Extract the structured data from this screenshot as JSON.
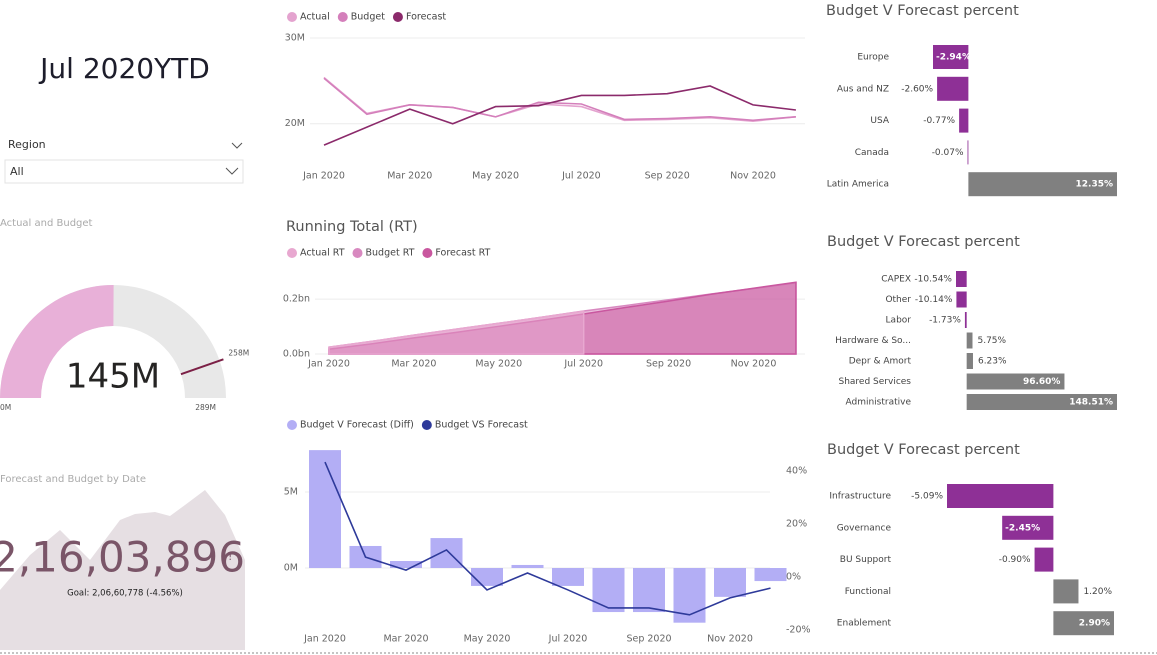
{
  "header": {
    "title": "Jul 2020YTD"
  },
  "slicer": {
    "label": "Region",
    "value": "All"
  },
  "kpi": {
    "title": "Forecast and Budget by Date",
    "value": "2,16,03,896",
    "icon": "!",
    "goal": "Goal: 2,06,60,778 (-4.56%)"
  },
  "chart_data": [
    {
      "type": "line",
      "categories": [
        "Jan 2020",
        null,
        "Mar 2020",
        null,
        "May 2020",
        null,
        "Jul 2020",
        null,
        "Sep 2020",
        null,
        "Nov 2020",
        null
      ],
      "series": [
        {
          "name": "Actual",
          "color": "#e4a3cf",
          "values": [
            25.4,
            21.2,
            22.2,
            21.9,
            20.8,
            22.3,
            22.0,
            20.4,
            20.5,
            20.7,
            20.3,
            20.8
          ]
        },
        {
          "name": "Budget",
          "color": "#d47fbb",
          "values": [
            25.3,
            21.1,
            22.2,
            21.9,
            20.8,
            22.5,
            22.3,
            20.5,
            20.6,
            20.8,
            20.4,
            20.8
          ]
        },
        {
          "name": "Forecast",
          "color": "#8b2a6b",
          "values": [
            17.5,
            19.6,
            21.7,
            20.0,
            22.0,
            22.1,
            23.3,
            23.3,
            23.5,
            24.4,
            22.2,
            21.6
          ]
        }
      ],
      "ylim": [
        16,
        30
      ],
      "yticks": [
        {
          "value": 20,
          "label": "20M"
        },
        {
          "value": 30,
          "label": "30M"
        }
      ],
      "grid": true
    },
    {
      "type": "area",
      "title": "Running Total (RT)",
      "categories": [
        "Jan 2020",
        null,
        "Mar 2020",
        null,
        "May 2020",
        null,
        "Jul 2020",
        null,
        "Sep 2020",
        null,
        "Nov 2020",
        null
      ],
      "series": [
        {
          "name": "Actual RT",
          "color": "#e8a8d0",
          "values": [
            0.025,
            0.046,
            0.069,
            0.091,
            0.112,
            0.134,
            0.156,
            null,
            null,
            null,
            null,
            null
          ]
        },
        {
          "name": "Budget RT",
          "color": "#d889c0",
          "values": [
            0.025,
            0.046,
            0.069,
            0.091,
            0.112,
            0.134,
            0.157,
            0.177,
            0.198,
            0.219,
            0.239,
            0.26
          ]
        },
        {
          "name": "Forecast RT",
          "color": "#c9579f",
          "values": [
            0.0175,
            0.037,
            0.059,
            0.079,
            0.101,
            0.123,
            0.146,
            0.17,
            0.193,
            0.218,
            0.24,
            0.262
          ]
        }
      ],
      "ylim": [
        0,
        0.27
      ],
      "yticks": [
        {
          "value": 0,
          "label": "0.0bn"
        },
        {
          "value": 0.2,
          "label": "0.2bn"
        }
      ],
      "grid": true
    },
    {
      "type": "combo",
      "categories": [
        "Jan 2020",
        null,
        "Mar 2020",
        null,
        "May 2020",
        null,
        "Jul 2020",
        null,
        "Sep 2020",
        null,
        "Nov 2020",
        null
      ],
      "series": [
        {
          "name": "Budget V Forecast (Diff)",
          "color": "#b3aef5",
          "values": [
            7.76,
            1.45,
            0.46,
            1.97,
            -1.18,
            0.2,
            -1.18,
            -2.9,
            -2.9,
            -3.6,
            -1.9,
            -0.86
          ]
        },
        {
          "name": "Budget VS Forecast",
          "color": "#2e3a9a",
          "axis": "y2",
          "values": [
            43.4,
            7.5,
            2.6,
            10.2,
            -4.9,
            1.5,
            -4.9,
            -11.7,
            -11.7,
            -14.3,
            -7.9,
            -4.2
          ]
        }
      ],
      "ylim": [
        -4.74,
        7.9
      ],
      "yticks": [
        {
          "value": 0,
          "label": "0M"
        },
        {
          "value": 5,
          "label": "5M"
        }
      ],
      "y2lim": [
        -23.8,
        48.7
      ],
      "y2ticks": [
        {
          "value": -20,
          "label": "-20%"
        },
        {
          "value": 0,
          "label": "0%"
        },
        {
          "value": 20,
          "label": "20%"
        },
        {
          "value": 40,
          "label": "40%"
        }
      ],
      "grid": true
    },
    {
      "type": "hbar",
      "title": "Budget V Forecast percent",
      "categories": [
        "Europe",
        "Aus and NZ",
        "USA",
        "Canada",
        "Latin America"
      ],
      "values": [
        -2.94,
        -2.6,
        -0.77,
        -0.07,
        12.35
      ],
      "value_labels": [
        "-2.94%",
        "-2.60%",
        "-0.77%",
        "-0.07%",
        "12.35%"
      ],
      "negative_color": "#8e3096",
      "positive_color": "#808080"
    },
    {
      "type": "hbar",
      "title": "Budget V Forecast percent",
      "categories": [
        "CAPEX",
        "Other",
        "Labor",
        "Hardware & So...",
        "Depr & Amort",
        "Shared Services",
        "Administrative"
      ],
      "values": [
        -10.54,
        -10.14,
        -1.73,
        5.75,
        6.23,
        96.6,
        148.51
      ],
      "value_labels": [
        "-10.54%",
        "-10.14%",
        "-1.73%",
        "5.75%",
        "6.23%",
        "96.60%",
        "148.51%"
      ],
      "negative_color": "#8e3096",
      "positive_color": "#808080"
    },
    {
      "type": "hbar",
      "title": "Budget V Forecast percent",
      "categories": [
        "Infrastructure",
        "Governance",
        "BU Support",
        "Functional",
        "Enablement"
      ],
      "values": [
        -5.09,
        -2.45,
        -0.9,
        1.2,
        2.9
      ],
      "value_labels": [
        "-5.09%",
        "-2.45%",
        "-0.90%",
        "1.20%",
        "2.90%"
      ],
      "negative_color": "#8e3096",
      "positive_color": "#808080"
    },
    {
      "type": "gauge",
      "title": "Actual and Budget",
      "value": 145,
      "value_label": "145M",
      "target": 258,
      "target_label": "258M",
      "ylim": [
        0,
        289
      ],
      "yticks": [
        {
          "value": 0,
          "label": "0M"
        },
        {
          "value": 289,
          "label": "289M"
        }
      ],
      "color": "#e8b0d8",
      "target_color": "#7b2046"
    }
  ]
}
